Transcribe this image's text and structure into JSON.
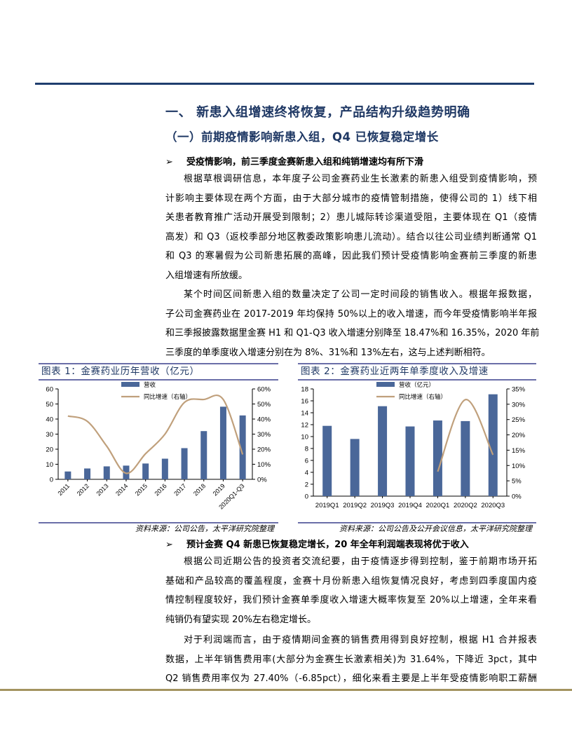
{
  "heading1": "一、 新患入组增速终将恢复，产品结构升级趋势明确",
  "heading2": "（一）前期疫情影响新患入组，Q4 已恢复稳定增长",
  "bullet_icon": "arrow-bullet-icon",
  "section1": {
    "bullet": "受疫情影响，前三季度金赛新患入组和纯销增速均有所下滑",
    "paragraphs": [
      [
        "根据草根调研信息，本年度子公司金赛药业生长激素的新患入组受到疫情影响，预",
        "计影响主要体现在两个方面，由于大部分城市的疫情管制措施，使得公司的 1）线下相",
        "关患者教育推广活动开展受到限制；2）患儿城际转诊渠道受阻，主要体现在 Q1（疫情",
        "高发）和 Q3（返校季部分地区教委政策影响患儿流动）。结合以往公司业绩判断通常 Q1",
        "和 Q3 的寒暑假为公司新患拓展的高峰，因此我们预计受疫情影响金赛前三季度的新患",
        "入组增速有所放缓。"
      ],
      [
        "某个时间区间新患入组的数量决定了公司一定时间段的销售收入。根据年报数据，",
        "子公司金赛药业在 2017-2019 年均保持 50%以上的收入增速，而今年受疫情影响半年报",
        "和三季报披露数据里金赛 H1 和 Q1-Q3 收入增速分别降至 18.47%和 16.35%，2020 年前",
        "三季度的单季度收入增速分别在为 8%、31%和 13%左右，这与上述判断相符。"
      ]
    ]
  },
  "section2": {
    "bullet": "预计金赛 Q4 新患已恢复稳定增长，20 年全年利润端表现将优于收入",
    "paragraphs": [
      [
        "根据公司近期公告的投资者交流纪要，由于疫情逐步得到控制，鉴于前期市场开拓",
        "基础和产品较高的覆盖程度，金赛十月份新患入组恢复情况良好，考虑到四季度国内疫",
        "情控制程度较好，我们预计金赛单季度收入增速大概率恢复至 20%以上增速，全年来看",
        "纯销仍有望实现 20%左右稳定增长。"
      ],
      [
        "对于利润端而言，由于疫情期间金赛的销售费用得到良好控制，根据 H1 合并报表",
        "数据，上半年销售费用率(大部分为金赛生长激素相关)为 31.64%，下降近 3pct，其中",
        "Q2 销售费用率仅为 27.40%（-6.85pct），细化来看主要是上半年受疫情影响职工薪酬"
      ]
    ]
  },
  "colors": {
    "heading": "#1f3864",
    "bar": "#4a6799",
    "line": "#c0a07c",
    "top_rule": "#1f3d6e",
    "bottom_rule": "#a39460"
  },
  "chart_data": [
    {
      "type": "bar",
      "title": "图表 1：金赛药业历年营收（亿元）",
      "source": "资料来源：公司公告，太平洋研究院整理",
      "categories": [
        "2011",
        "2012",
        "2013",
        "2014",
        "2015",
        "2016",
        "2017",
        "2018",
        "2019",
        "2020Q1-Q3"
      ],
      "series": [
        {
          "name": "营收",
          "type": "bar",
          "axis": "left",
          "values": [
            5.2,
            7.2,
            8.6,
            9.1,
            10.5,
            13.7,
            20.7,
            32.0,
            48.2,
            42.4
          ]
        },
        {
          "name": "同比增速（右轴）",
          "type": "line",
          "axis": "right",
          "values": [
            42,
            38.5,
            22,
            4,
            17,
            30,
            51,
            53,
            53,
            16.5
          ]
        }
      ],
      "ylim": [
        0,
        60
      ],
      "yticks": [
        "0",
        "10",
        "20",
        "30",
        "40",
        "50",
        "60"
      ],
      "y2lim": [
        0,
        60
      ],
      "y2ticks": [
        "0%",
        "10%",
        "20%",
        "30%",
        "40%",
        "50%",
        "60%"
      ],
      "legend": "top",
      "grid": false
    },
    {
      "type": "bar",
      "title": "图表 2：金赛药业近两年单季度收入及增速",
      "source": "资料来源：公司公告及公开会议信息，太平洋研究院整理",
      "categories": [
        "2019Q1",
        "2019Q2",
        "2019Q3",
        "2019Q4",
        "2020Q1",
        "2020Q2",
        "2020Q3"
      ],
      "series": [
        {
          "name": "营收（亿元）",
          "type": "bar",
          "axis": "left",
          "values": [
            11.8,
            9.6,
            15.1,
            11.7,
            12.7,
            12.6,
            17.1
          ]
        },
        {
          "name": "同比增速（右轴）",
          "type": "line",
          "axis": "right",
          "values": [
            null,
            null,
            null,
            null,
            8,
            31.5,
            13.5
          ]
        }
      ],
      "ylim": [
        0,
        18
      ],
      "yticks": [
        "0",
        "2",
        "4",
        "6",
        "8",
        "10",
        "12",
        "14",
        "16",
        "18"
      ],
      "y2lim": [
        0,
        35
      ],
      "y2ticks": [
        "0%",
        "5%",
        "10%",
        "15%",
        "20%",
        "25%",
        "30%",
        "35%"
      ],
      "legend": "top",
      "grid": false
    }
  ]
}
